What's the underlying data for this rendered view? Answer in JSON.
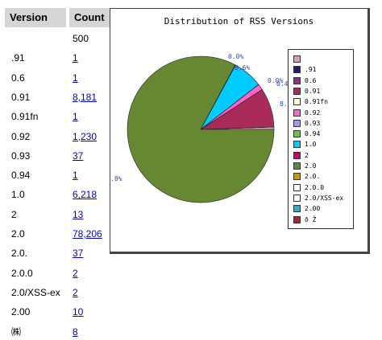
{
  "table": {
    "header_version": "Version",
    "header_count": "Count",
    "rows": [
      {
        "version": "",
        "count": "500",
        "link": false
      },
      {
        "version": ".91",
        "count": "1",
        "link": true
      },
      {
        "version": "0.6",
        "count": "1",
        "link": true
      },
      {
        "version": "0.91",
        "count": "8,181",
        "link": true
      },
      {
        "version": "0.91fn",
        "count": "1",
        "link": true
      },
      {
        "version": "0.92",
        "count": "1,230",
        "link": true
      },
      {
        "version": "0.93",
        "count": "37",
        "link": true
      },
      {
        "version": "0.94",
        "count": "1",
        "link": true
      },
      {
        "version": "1.0",
        "count": "6,218",
        "link": true
      },
      {
        "version": "2",
        "count": "13",
        "link": true
      },
      {
        "version": "2.0",
        "count": "78,206",
        "link": true
      },
      {
        "version": "2.0.",
        "count": "37",
        "link": true
      },
      {
        "version": "2.0.0",
        "count": "2",
        "link": true
      },
      {
        "version": "2.0/XSS-ex",
        "count": "2",
        "link": true
      },
      {
        "version": "2.00",
        "count": "10",
        "link": true
      },
      {
        "version": "㈱",
        "count": "8",
        "link": true
      }
    ]
  },
  "chart_data": {
    "type": "pie",
    "title": "Distribution of RSS Versions",
    "slices": [
      {
        "label": "",
        "value": 500,
        "color": "#d8a0b0"
      },
      {
        "label": ".91",
        "value": 1,
        "color": "#1a1a8c"
      },
      {
        "label": "0.6",
        "value": 1,
        "color": "#9a2890"
      },
      {
        "label": "0.91",
        "value": 8181,
        "color": "#aa2a5a"
      },
      {
        "label": "0.91fn",
        "value": 1,
        "color": "#ffffcc"
      },
      {
        "label": "0.92",
        "value": 1230,
        "color": "#ff66cc"
      },
      {
        "label": "0.93",
        "value": 37,
        "color": "#9999ff"
      },
      {
        "label": "0.94",
        "value": 1,
        "color": "#66cc33"
      },
      {
        "label": "1.0",
        "value": 6218,
        "color": "#00ccff"
      },
      {
        "label": "2",
        "value": 13,
        "color": "#cc0066"
      },
      {
        "label": "2.0",
        "value": 78206,
        "color": "#668833"
      },
      {
        "label": "2.0.",
        "value": 37,
        "color": "#cc9900"
      },
      {
        "label": "2.0.0",
        "value": 2,
        "color": "#ffffff"
      },
      {
        "label": "2.0/XSS-ex",
        "value": 2,
        "color": "#ffffff"
      },
      {
        "label": "2.00",
        "value": 10,
        "color": "#33aacc"
      },
      {
        "label": "ð Ž",
        "value": 8,
        "color": "#aa2233"
      }
    ],
    "visible_labels": [
      "0.0%",
      "6.6%",
      "0.0%",
      "0.4%",
      "8.",
      ".8%"
    ],
    "legend_position": "right"
  }
}
